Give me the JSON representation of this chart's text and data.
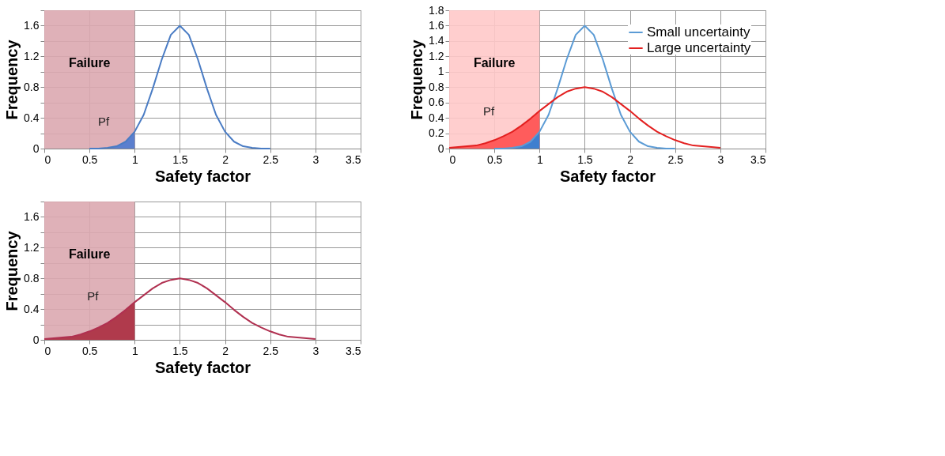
{
  "chart_data": [
    {
      "type": "line",
      "xlabel": "Safety factor",
      "ylabel": "Frequency",
      "xlim": [
        0,
        3.5
      ],
      "xticks": [
        0,
        0.5,
        1,
        1.5,
        2,
        2.5,
        3,
        3.5
      ],
      "ylim": [
        0,
        1.8
      ],
      "yticks": [
        0,
        {
          "value": 0.2,
          "label": null
        },
        0.4,
        {
          "value": 0.6,
          "label": null
        },
        0.8,
        {
          "value": 1.0,
          "label": null
        },
        1.2,
        {
          "value": 1.4,
          "label": null
        },
        1.6,
        {
          "value": 1.8,
          "label": null
        }
      ],
      "grid": true,
      "legend": false,
      "series": [
        {
          "type": "area",
          "color": "#5b7fce",
          "x": [
            0.5,
            0.6,
            0.7,
            0.8,
            0.9,
            1.0
          ],
          "values": [
            0,
            0,
            0.01,
            0.03,
            0.09,
            0.22
          ]
        },
        {
          "color": "#4a7cc4",
          "x": [
            0.5,
            0.6,
            0.7,
            0.8,
            0.9,
            1.0,
            1.1,
            1.2,
            1.3,
            1.4,
            1.5,
            1.6,
            1.7,
            1.8,
            1.9,
            2.0,
            2.1,
            2.2,
            2.3,
            2.4,
            2.5
          ],
          "values": [
            0,
            0,
            0.01,
            0.03,
            0.09,
            0.22,
            0.44,
            0.78,
            1.16,
            1.48,
            1.6,
            1.48,
            1.16,
            0.78,
            0.44,
            0.22,
            0.09,
            0.03,
            0.01,
            0,
            0
          ]
        }
      ],
      "bands": [
        {
          "axis": "x",
          "from": 0,
          "to": 1,
          "label": "Failure",
          "color": "#dba8b0"
        }
      ],
      "annotations": [
        {
          "text": "Pf",
          "x": 0.92,
          "y": 0.08
        }
      ]
    },
    {
      "type": "line",
      "xlabel": "Safety factor",
      "ylabel": "Frequency",
      "xlim": [
        0,
        3.5
      ],
      "xticks": [
        0,
        0.5,
        1,
        1.5,
        2,
        2.5,
        3,
        3.5
      ],
      "ylim": [
        0,
        1.8
      ],
      "yticks": [
        0,
        {
          "value": 0.2,
          "label": null
        },
        0.4,
        {
          "value": 0.6,
          "label": null
        },
        0.8,
        {
          "value": 1.0,
          "label": null
        },
        1.2,
        {
          "value": 1.4,
          "label": null
        },
        1.6,
        {
          "value": 1.8,
          "label": null
        }
      ],
      "grid": true,
      "legend": false,
      "series": [
        {
          "type": "area",
          "color": "#b03a4c",
          "x": [
            0,
            0.1,
            0.2,
            0.3,
            0.4,
            0.5,
            0.6,
            0.7,
            0.8,
            0.9,
            1.0
          ],
          "values": [
            0.01,
            0.02,
            0.03,
            0.04,
            0.07,
            0.11,
            0.16,
            0.22,
            0.3,
            0.39,
            0.49
          ]
        },
        {
          "color": "#b03050",
          "x": [
            0,
            0.1,
            0.2,
            0.3,
            0.4,
            0.5,
            0.6,
            0.7,
            0.8,
            0.9,
            1.0,
            1.1,
            1.2,
            1.3,
            1.4,
            1.5,
            1.6,
            1.7,
            1.8,
            1.9,
            2.0,
            2.1,
            2.2,
            2.3,
            2.4,
            2.5,
            2.6,
            2.7,
            2.8,
            2.9,
            3.0
          ],
          "values": [
            0.01,
            0.02,
            0.03,
            0.04,
            0.07,
            0.11,
            0.16,
            0.22,
            0.3,
            0.39,
            0.49,
            0.58,
            0.67,
            0.74,
            0.78,
            0.8,
            0.78,
            0.74,
            0.67,
            0.58,
            0.49,
            0.39,
            0.3,
            0.22,
            0.16,
            0.11,
            0.07,
            0.04,
            0.03,
            0.02,
            0.01
          ]
        }
      ],
      "bands": [
        {
          "axis": "x",
          "from": 0,
          "to": 1,
          "label": "Failure",
          "color": "#dba8b0"
        }
      ],
      "annotations": [
        {
          "text": "Pf",
          "x": 0.8,
          "y": 0.3
        }
      ]
    },
    {
      "type": "line",
      "xlabel": "Safety factor",
      "ylabel": "Frequency",
      "xlim": [
        0,
        3.5
      ],
      "xticks": [
        0,
        0.5,
        1,
        1.5,
        2,
        2.5,
        3,
        3.5
      ],
      "ylim": [
        0,
        1.8
      ],
      "yticks": [
        0,
        0.2,
        0.4,
        0.6,
        0.8,
        1,
        1.2,
        1.4,
        1.6,
        1.8
      ],
      "grid": true,
      "legend": "top right",
      "series": [
        {
          "type": "area",
          "color": "#ff5c5c",
          "x": [
            0,
            0.1,
            0.2,
            0.3,
            0.4,
            0.5,
            0.6,
            0.7,
            0.8,
            0.9,
            1.0
          ],
          "values": [
            0.01,
            0.02,
            0.03,
            0.04,
            0.07,
            0.11,
            0.16,
            0.22,
            0.3,
            0.39,
            0.49
          ]
        },
        {
          "type": "area",
          "color": "#3f7fcf",
          "x": [
            0.5,
            0.6,
            0.7,
            0.8,
            0.9,
            1.0
          ],
          "values": [
            0,
            0,
            0.01,
            0.03,
            0.09,
            0.22
          ]
        },
        {
          "name": "Small uncertainty",
          "color": "#5b9bd5",
          "x": [
            0.5,
            0.6,
            0.7,
            0.8,
            0.9,
            1.0,
            1.1,
            1.2,
            1.3,
            1.4,
            1.5,
            1.6,
            1.7,
            1.8,
            1.9,
            2.0,
            2.1,
            2.2,
            2.3,
            2.4,
            2.5
          ],
          "values": [
            0,
            0,
            0.01,
            0.03,
            0.09,
            0.22,
            0.44,
            0.78,
            1.16,
            1.48,
            1.6,
            1.48,
            1.16,
            0.78,
            0.44,
            0.22,
            0.09,
            0.03,
            0.01,
            0,
            0
          ]
        },
        {
          "name": "Large uncertainty",
          "color": "#e32020",
          "x": [
            0,
            0.1,
            0.2,
            0.3,
            0.4,
            0.5,
            0.6,
            0.7,
            0.8,
            0.9,
            1.0,
            1.1,
            1.2,
            1.3,
            1.4,
            1.5,
            1.6,
            1.7,
            1.8,
            1.9,
            2.0,
            2.1,
            2.2,
            2.3,
            2.4,
            2.5,
            2.6,
            2.7,
            2.8,
            2.9,
            3.0
          ],
          "values": [
            0.01,
            0.02,
            0.03,
            0.04,
            0.07,
            0.11,
            0.16,
            0.22,
            0.3,
            0.39,
            0.49,
            0.58,
            0.67,
            0.74,
            0.78,
            0.8,
            0.78,
            0.74,
            0.67,
            0.58,
            0.49,
            0.39,
            0.3,
            0.22,
            0.16,
            0.11,
            0.07,
            0.04,
            0.03,
            0.02,
            0.01
          ]
        }
      ],
      "bands": [
        {
          "axis": "x",
          "from": 0,
          "to": 1,
          "label": "Failure",
          "color": "#ffc9c9"
        }
      ],
      "annotations": [
        {
          "text": "Pf",
          "x": 0.7,
          "y": 0.22
        }
      ]
    }
  ]
}
